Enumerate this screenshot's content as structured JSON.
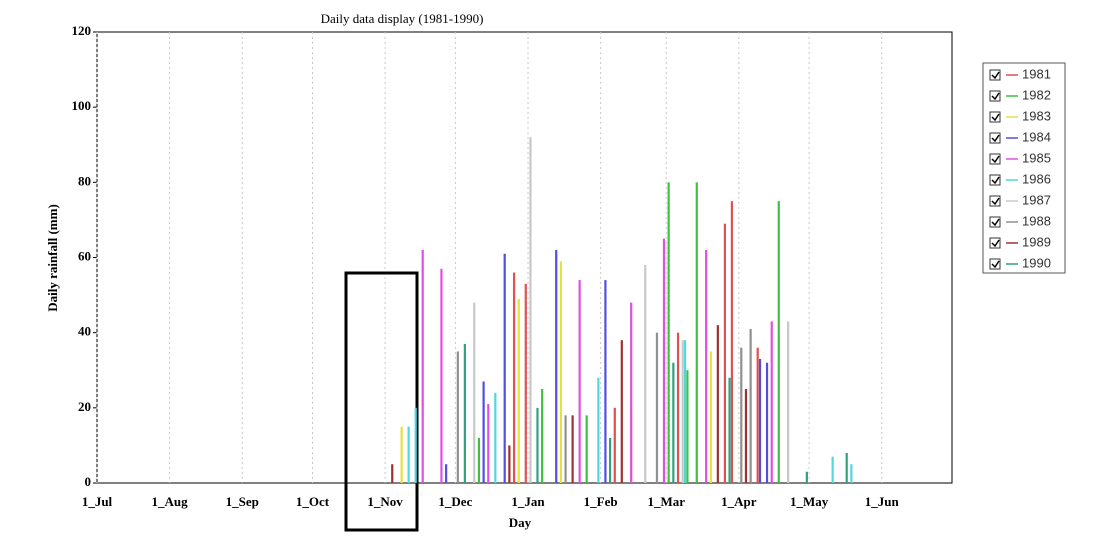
{
  "chart_data": {
    "type": "bar",
    "title": "Daily data display (1981-1990)",
    "xlabel": "Day",
    "ylabel": "Daily rainfall (mm)",
    "xlim": [
      0,
      365
    ],
    "xticks": [
      {
        "value": 0,
        "label": "1_Jul"
      },
      {
        "value": 31,
        "label": "1_Aug"
      },
      {
        "value": 62,
        "label": "1_Sep"
      },
      {
        "value": 92,
        "label": "1_Oct"
      },
      {
        "value": 123,
        "label": "1_Nov"
      },
      {
        "value": 153,
        "label": "1_Dec"
      },
      {
        "value": 184,
        "label": "1_Jan"
      },
      {
        "value": 215,
        "label": "1_Feb"
      },
      {
        "value": 243,
        "label": "1_Mar"
      },
      {
        "value": 274,
        "label": "1_Apr"
      },
      {
        "value": 304,
        "label": "1_May"
      },
      {
        "value": 335,
        "label": "1_Jun"
      }
    ],
    "ylim": [
      0,
      120
    ],
    "yticks": [
      0,
      20,
      40,
      60,
      80,
      100,
      120
    ],
    "grid": true,
    "legend": "right",
    "series": [
      {
        "name": "1981",
        "color": "#e05050",
        "x": [
          178,
          183,
          221,
          248,
          268,
          271,
          282
        ],
        "values": [
          56,
          53,
          20,
          40,
          69,
          75,
          36
        ]
      },
      {
        "name": "1982",
        "color": "#40c040",
        "x": [
          163,
          190,
          209,
          244,
          252,
          256,
          291
        ],
        "values": [
          12,
          25,
          18,
          80,
          30,
          80,
          75
        ]
      },
      {
        "name": "1983",
        "color": "#e8e040",
        "x": [
          130,
          180,
          198,
          228,
          262
        ],
        "values": [
          15,
          49,
          59,
          20,
          35
        ]
      },
      {
        "name": "1984",
        "color": "#5050e0",
        "x": [
          149,
          165,
          174,
          196,
          217,
          283,
          286
        ],
        "values": [
          5,
          27,
          61,
          62,
          54,
          33,
          32
        ]
      },
      {
        "name": "1985",
        "color": "#e050e0",
        "x": [
          139,
          147,
          167,
          206,
          228,
          242,
          260,
          288
        ],
        "values": [
          62,
          57,
          21,
          54,
          48,
          65,
          62,
          43
        ]
      },
      {
        "name": "1986",
        "color": "#50d8e0",
        "x": [
          133,
          136,
          170,
          214,
          251,
          314,
          322
        ],
        "values": [
          15,
          20,
          24,
          28,
          38,
          7,
          5
        ]
      },
      {
        "name": "1987",
        "color": "#c8c8c8",
        "x": [
          161,
          185,
          234,
          250,
          295
        ],
        "values": [
          48,
          92,
          58,
          38,
          43
        ]
      },
      {
        "name": "1988",
        "color": "#909090",
        "x": [
          154,
          200,
          239,
          275,
          279
        ],
        "values": [
          35,
          18,
          40,
          36,
          41
        ]
      },
      {
        "name": "1989",
        "color": "#a03030",
        "x": [
          126,
          176,
          203,
          224,
          265,
          277
        ],
        "values": [
          5,
          10,
          18,
          38,
          42,
          25
        ]
      },
      {
        "name": "1990",
        "color": "#30a080",
        "x": [
          157,
          188,
          219,
          246,
          270,
          303,
          320
        ],
        "values": [
          37,
          20,
          12,
          32,
          28,
          3,
          8
        ]
      }
    ]
  }
}
